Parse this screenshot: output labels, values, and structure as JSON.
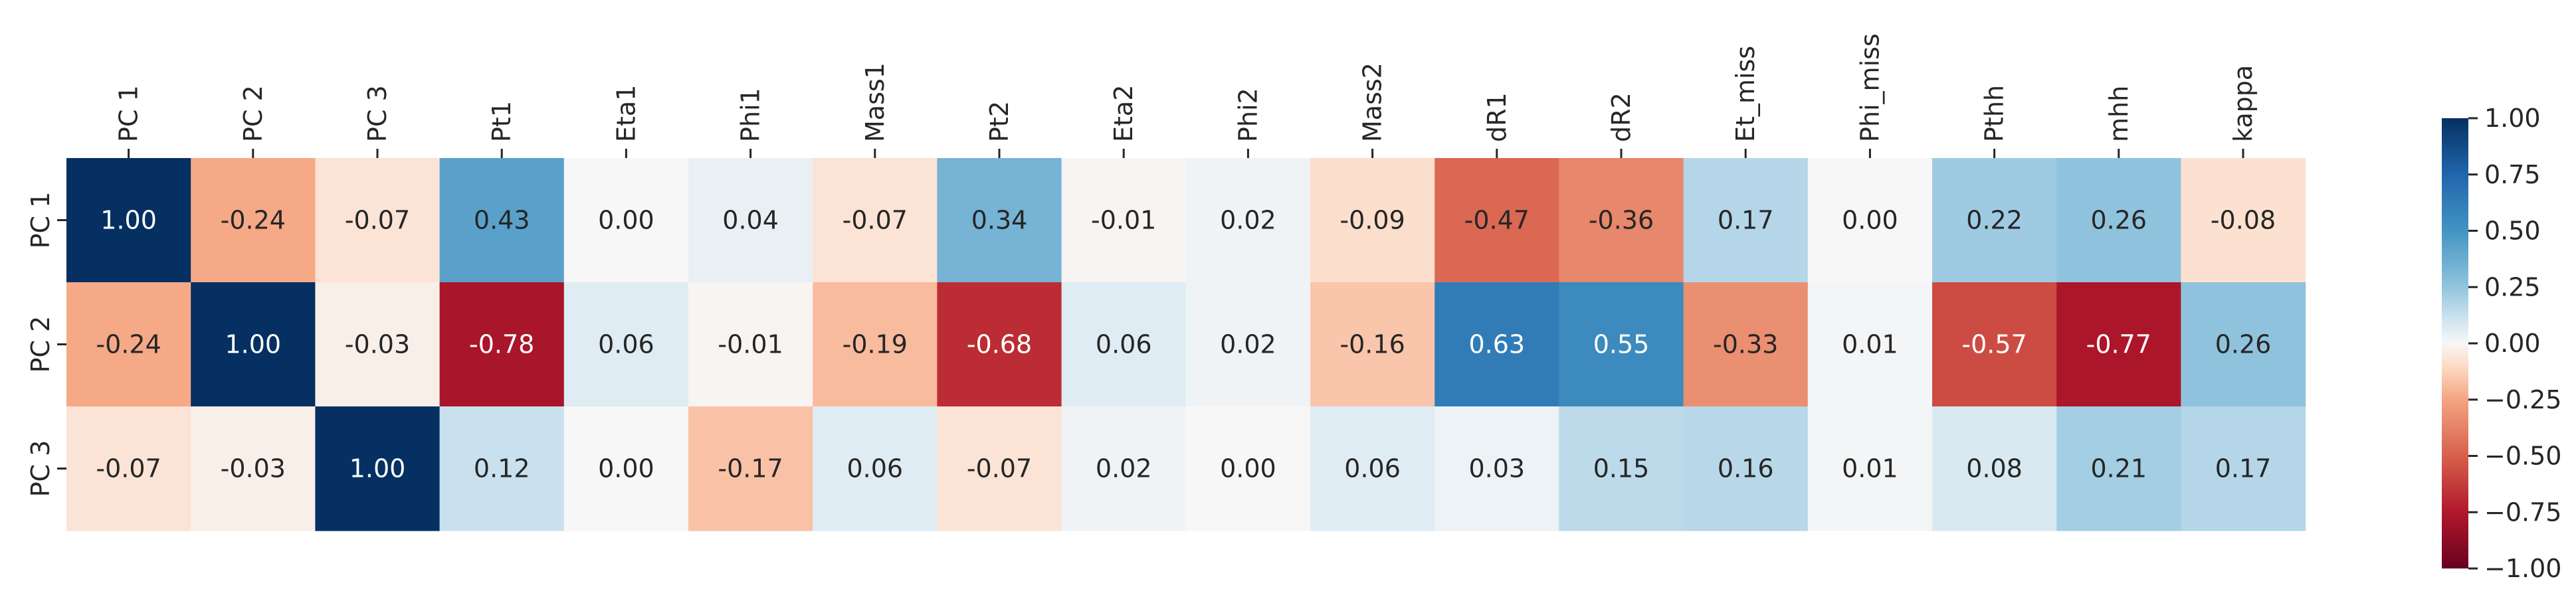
{
  "chart_data": {
    "type": "heatmap",
    "title": "",
    "xlabel": "",
    "ylabel": "",
    "x_labels": [
      "PC 1",
      "PC 2",
      "PC 3",
      "Pt1",
      "Eta1",
      "Phi1",
      "Mass1",
      "Pt2",
      "Eta2",
      "Phi2",
      "Mass2",
      "dR1",
      "dR2",
      "Et_miss",
      "Phi_miss",
      "Pthh",
      "mhh",
      "kappa"
    ],
    "y_labels": [
      "PC 1",
      "PC 2",
      "PC 3"
    ],
    "values": [
      [
        1.0,
        -0.24,
        -0.07,
        0.43,
        0.0,
        0.04,
        -0.07,
        0.34,
        -0.01,
        0.02,
        -0.09,
        -0.47,
        -0.36,
        0.17,
        0.0,
        0.22,
        0.26,
        -0.08
      ],
      [
        -0.24,
        1.0,
        -0.03,
        -0.78,
        0.06,
        -0.01,
        -0.19,
        -0.68,
        0.06,
        0.02,
        -0.16,
        0.63,
        0.55,
        -0.33,
        0.01,
        -0.57,
        -0.77,
        0.26
      ],
      [
        -0.07,
        -0.03,
        1.0,
        0.12,
        0.0,
        -0.17,
        0.06,
        -0.07,
        0.02,
        0.0,
        0.06,
        0.03,
        0.15,
        0.16,
        0.01,
        0.08,
        0.21,
        0.17
      ]
    ],
    "value_range": [
      -1.0,
      1.0
    ],
    "colormap": "RdBu",
    "colorbar": {
      "ticks": [
        1.0,
        0.75,
        0.5,
        0.25,
        0.0,
        -0.25,
        -0.5,
        -0.75,
        -1.0
      ],
      "tick_labels": [
        "1.00",
        "0.75",
        "0.50",
        "0.25",
        "0.00",
        "−0.25",
        "−0.50",
        "−0.75",
        "−1.00"
      ]
    },
    "annotations": true,
    "grid": false,
    "legend": "colorbar-right"
  }
}
